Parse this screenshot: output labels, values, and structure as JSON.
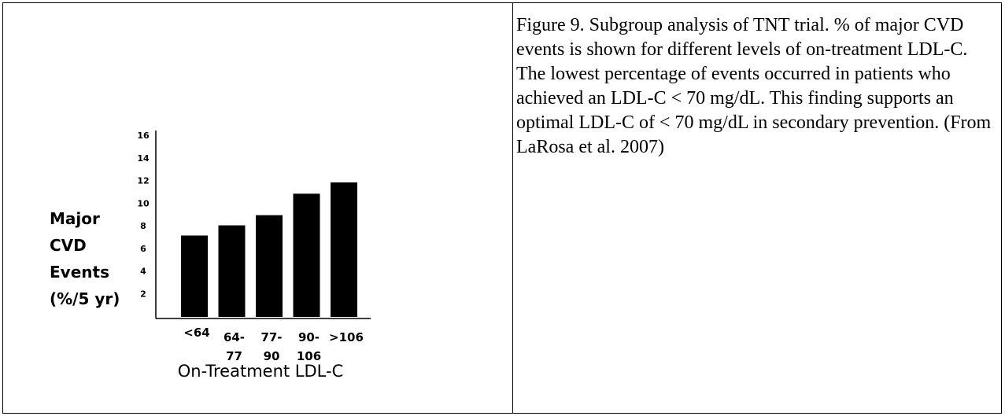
{
  "chart_data": {
    "type": "bar",
    "ylabel": "Major\nCVD\nEvents\n(%/5 yr)",
    "xlabel": "On-Treatment LDL-C",
    "categories": [
      "<64",
      "64-\n77",
      "77-\n90",
      "90-\n106",
      ">106"
    ],
    "values": [
      7.2,
      8.1,
      9.0,
      10.9,
      11.9
    ],
    "color": "#000000",
    "ylim": [
      0,
      16
    ],
    "yticks": [
      2,
      4,
      6,
      8,
      10,
      12,
      14,
      16
    ],
    "grid": false
  },
  "caption": "Figure 9. Subgroup analysis of TNT trial.  % of major CVD events is shown for different levels of on-treatment LDL-C.  The lowest percentage of events occurred in patients who achieved an LDL-C < 70 mg/dL.  This finding supports an optimal LDL-C of < 70 mg/dL in secondary prevention. (From LaRosa et al. 2007)"
}
